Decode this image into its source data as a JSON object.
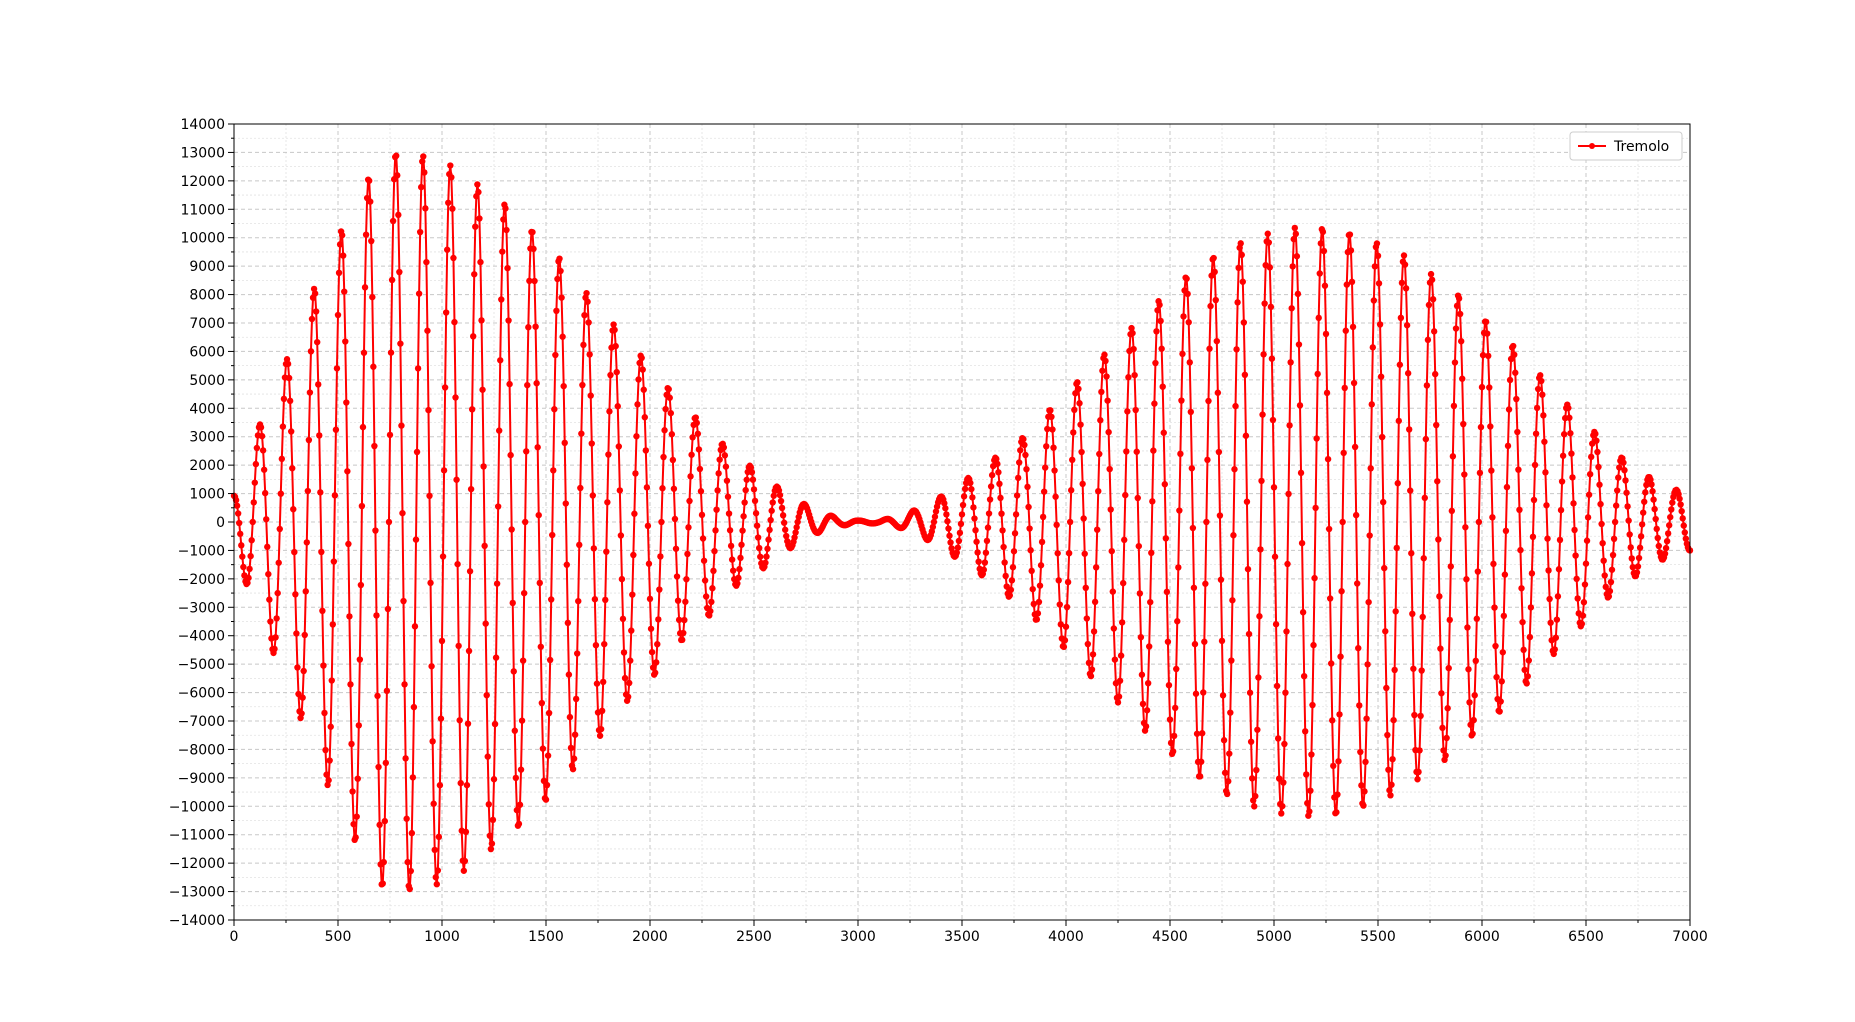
{
  "chart_data": {
    "type": "line",
    "title": "",
    "xlabel": "",
    "ylabel": "",
    "xlim": [
      0,
      7000
    ],
    "ylim": [
      -14000,
      14000
    ],
    "x_ticks": [
      0,
      500,
      1000,
      1500,
      2000,
      2500,
      3000,
      3500,
      4000,
      4500,
      5000,
      5500,
      6000,
      6500,
      7000
    ],
    "y_ticks": [
      -14000,
      -13000,
      -12000,
      -11000,
      -10000,
      -9000,
      -8000,
      -7000,
      -6000,
      -5000,
      -4000,
      -3000,
      -2000,
      -1000,
      0,
      1000,
      2000,
      3000,
      4000,
      5000,
      6000,
      7000,
      8000,
      9000,
      10000,
      11000,
      12000,
      13000,
      14000
    ],
    "x_tick_labels": [
      "0",
      "500",
      "1000",
      "1500",
      "2000",
      "2500",
      "3000",
      "3500",
      "4000",
      "4500",
      "5000",
      "5500",
      "6000",
      "6500",
      "7000"
    ],
    "y_tick_labels": [
      "−14000",
      "−13000",
      "−12000",
      "−11000",
      "−10000",
      "−9000",
      "−8000",
      "−7000",
      "−6000",
      "−5000",
      "−4000",
      "−3000",
      "−2000",
      "−1000",
      "0",
      "1000",
      "2000",
      "3000",
      "4000",
      "5000",
      "6000",
      "7000",
      "8000",
      "9000",
      "10000",
      "11000",
      "12000",
      "13000",
      "14000"
    ],
    "grid": true,
    "grid_style": "dashed",
    "legend_placement": "top-right",
    "series": [
      {
        "name": "Tremolo",
        "color": "#ff0000",
        "marker": "circle",
        "x_start": 0,
        "x_end": 7000,
        "x_step": 5,
        "oscillation_period": 131,
        "envelope": [
          [
            0,
            1000
          ],
          [
            100,
            3000
          ],
          [
            200,
            4800
          ],
          [
            300,
            6500
          ],
          [
            400,
            8500
          ],
          [
            500,
            10000
          ],
          [
            600,
            11500
          ],
          [
            700,
            12800
          ],
          [
            800,
            13000
          ],
          [
            900,
            12900
          ],
          [
            1000,
            12700
          ],
          [
            1100,
            12300
          ],
          [
            1200,
            11700
          ],
          [
            1300,
            11200
          ],
          [
            1400,
            10500
          ],
          [
            1500,
            9800
          ],
          [
            1600,
            9000
          ],
          [
            1700,
            8000
          ],
          [
            1800,
            7200
          ],
          [
            1900,
            6200
          ],
          [
            2000,
            5600
          ],
          [
            2100,
            4600
          ],
          [
            2200,
            3800
          ],
          [
            2300,
            3200
          ],
          [
            2400,
            2300
          ],
          [
            2500,
            1900
          ],
          [
            2600,
            1300
          ],
          [
            2700,
            800
          ],
          [
            2800,
            400
          ],
          [
            2900,
            150
          ],
          [
            3000,
            50
          ],
          [
            3100,
            50
          ],
          [
            3200,
            200
          ],
          [
            3300,
            500
          ],
          [
            3400,
            900
          ],
          [
            3500,
            1400
          ],
          [
            3600,
            1900
          ],
          [
            3700,
            2500
          ],
          [
            3800,
            3000
          ],
          [
            3900,
            3800
          ],
          [
            4000,
            4500
          ],
          [
            4100,
            5300
          ],
          [
            4200,
            6000
          ],
          [
            4300,
            6700
          ],
          [
            4400,
            7500
          ],
          [
            4500,
            8100
          ],
          [
            4600,
            8800
          ],
          [
            4700,
            9300
          ],
          [
            4800,
            9700
          ],
          [
            4900,
            10000
          ],
          [
            5000,
            10200
          ],
          [
            5100,
            10350
          ],
          [
            5200,
            10350
          ],
          [
            5300,
            10300
          ],
          [
            5400,
            10100
          ],
          [
            5500,
            9800
          ],
          [
            5600,
            9500
          ],
          [
            5700,
            9000
          ],
          [
            5800,
            8500
          ],
          [
            5900,
            7900
          ],
          [
            6000,
            7200
          ],
          [
            6100,
            6600
          ],
          [
            6200,
            5800
          ],
          [
            6300,
            5000
          ],
          [
            6400,
            4200
          ],
          [
            6500,
            3500
          ],
          [
            6600,
            2700
          ],
          [
            6700,
            2100
          ],
          [
            6800,
            1600
          ],
          [
            6900,
            1200
          ],
          [
            7000,
            1000
          ]
        ]
      }
    ]
  }
}
